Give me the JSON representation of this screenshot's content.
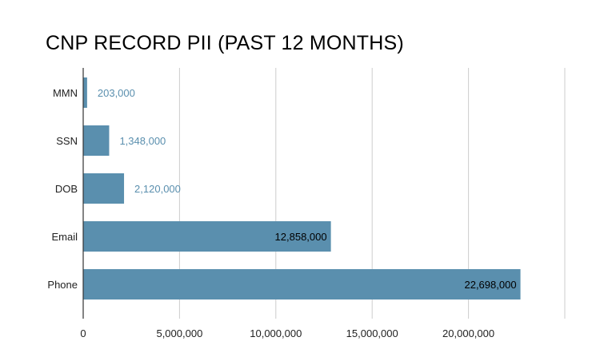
{
  "chart_data": {
    "type": "bar",
    "orientation": "horizontal",
    "title": "CNP RECORD PII (PAST 12 MONTHS)",
    "categories": [
      "MMN",
      "SSN",
      "DOB",
      "Email",
      "Phone"
    ],
    "values": [
      203000,
      1348000,
      2120000,
      12858000,
      22698000
    ],
    "data_labels": [
      "203,000",
      "1,348,000",
      "2,120,000",
      "12,858,000",
      "22,698,000"
    ],
    "xlim": [
      0,
      25000000
    ],
    "xticks": [
      0,
      5000000,
      10000000,
      15000000,
      20000000
    ],
    "xtick_labels": [
      "0",
      "5,000,000",
      "10,000,000",
      "15,000,000",
      "20,000,000"
    ],
    "gridlines": [
      0,
      5000000,
      10000000,
      15000000,
      20000000,
      25000000
    ],
    "xlabel": "",
    "ylabel": "",
    "grid": true,
    "legend": "none",
    "colors": {
      "bar": "#5a8fae",
      "label_outside": "#5a8fae",
      "label_inside": "#000000",
      "grid": "#cccccc"
    }
  }
}
